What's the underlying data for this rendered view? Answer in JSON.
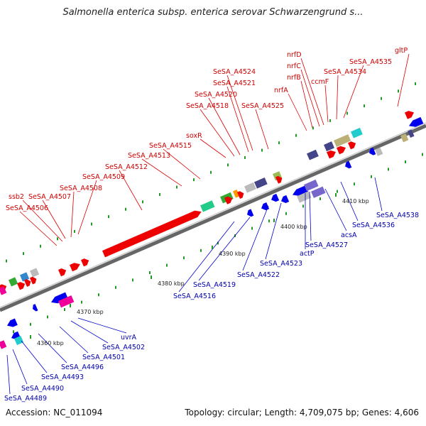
{
  "header": {
    "title": "Salmonella enterica subsp. enterica serovar Schwarzengrund s..."
  },
  "footer": {
    "accession": "Accession: NC_011094",
    "summary": "Topology: circular; Length: 4,709,075 bp; Genes: 4,606"
  },
  "axis": {
    "ticks": [
      {
        "label": "4360 kbp"
      },
      {
        "label": "4370 kbp"
      },
      {
        "label": "4380 kbp"
      },
      {
        "label": "4390 kbp"
      },
      {
        "label": "4400 kbp"
      },
      {
        "label": "4410 kbp"
      }
    ]
  },
  "colors": {
    "forward_strand": "#ee0000",
    "reverse_strand": "#0000ee",
    "backbone": "#777777",
    "tick": "#228822"
  },
  "forward_labels": [
    {
      "text": "SeSA_A4506"
    },
    {
      "text": "ssb2"
    },
    {
      "text": "SeSA_A4507"
    },
    {
      "text": "SeSA_A4508"
    },
    {
      "text": "SeSA_A4509"
    },
    {
      "text": "SeSA_A4512"
    },
    {
      "text": "SeSA_A4513"
    },
    {
      "text": "SeSA_A4515"
    },
    {
      "text": "soxR"
    },
    {
      "text": "SeSA_A4518"
    },
    {
      "text": "SeSA_A4520"
    },
    {
      "text": "SeSA_A4521"
    },
    {
      "text": "SeSA_A4524"
    },
    {
      "text": "SeSA_A4525"
    },
    {
      "text": "nrfA"
    },
    {
      "text": "nrfB"
    },
    {
      "text": "nrfC"
    },
    {
      "text": "nrfD"
    },
    {
      "text": "ccmF"
    },
    {
      "text": "SeSA_A4534"
    },
    {
      "text": "SeSA_A4535"
    },
    {
      "text": "gltP"
    }
  ],
  "reverse_labels": [
    {
      "text": "SeSA_A4489"
    },
    {
      "text": "SeSA_A4490"
    },
    {
      "text": "SeSA_A4493"
    },
    {
      "text": "SeSA_A4496"
    },
    {
      "text": "SeSA_A4501"
    },
    {
      "text": "SeSA_A4502"
    },
    {
      "text": "uvrA"
    },
    {
      "text": "SeSA_A4516"
    },
    {
      "text": "SeSA_A4519"
    },
    {
      "text": "SeSA_A4522"
    },
    {
      "text": "SeSA_A4523"
    },
    {
      "text": "actP"
    },
    {
      "text": "SeSA_A4527"
    },
    {
      "text": "acsA"
    },
    {
      "text": "SeSA_A4536"
    },
    {
      "text": "SeSA_A4538"
    }
  ]
}
